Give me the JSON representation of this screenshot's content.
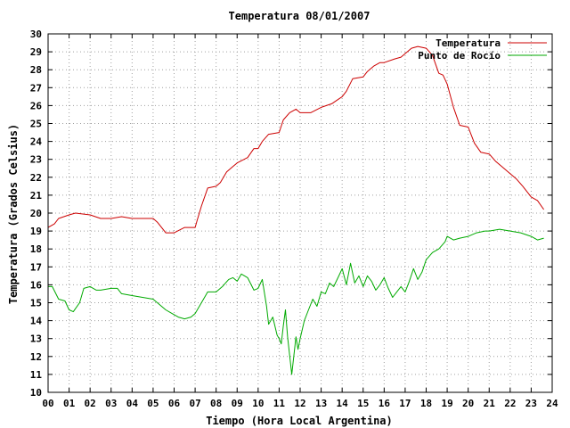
{
  "chart_data": {
    "type": "line",
    "title": "Temperatura 08/01/2007",
    "xlabel": "Tiempo (Hora Local Argentina)",
    "ylabel": "Temperatura (Grados Celsius)",
    "xlim": [
      0,
      24
    ],
    "ylim": [
      10,
      30
    ],
    "grid": true,
    "legend_position": "top-right",
    "x_tick_labels": [
      "00",
      "01",
      "02",
      "03",
      "04",
      "05",
      "06",
      "07",
      "08",
      "09",
      "10",
      "11",
      "12",
      "13",
      "14",
      "15",
      "16",
      "17",
      "18",
      "19",
      "20",
      "21",
      "22",
      "23",
      "24"
    ],
    "y_tick_labels": [
      "10",
      "11",
      "12",
      "13",
      "14",
      "15",
      "16",
      "17",
      "18",
      "19",
      "20",
      "21",
      "22",
      "23",
      "24",
      "25",
      "26",
      "27",
      "28",
      "29",
      "30"
    ],
    "series": [
      {
        "name": "Temperatura",
        "color": "#cc0000",
        "x": [
          0.0,
          0.3,
          0.5,
          1.0,
          1.3,
          2.0,
          2.5,
          3.0,
          3.5,
          4.0,
          4.5,
          5.0,
          5.2,
          5.4,
          5.6,
          6.0,
          6.5,
          7.0,
          7.1,
          7.3,
          7.6,
          8.0,
          8.2,
          8.5,
          8.8,
          9.0,
          9.5,
          9.8,
          10.0,
          10.2,
          10.5,
          11.0,
          11.2,
          11.5,
          11.8,
          12.0,
          12.5,
          13.0,
          13.5,
          14.0,
          14.2,
          14.5,
          15.0,
          15.2,
          15.5,
          15.8,
          16.0,
          16.5,
          16.8,
          17.0,
          17.3,
          17.6,
          18.0,
          18.3,
          18.6,
          18.8,
          19.0,
          19.3,
          19.6,
          20.0,
          20.3,
          20.6,
          21.0,
          21.3,
          21.6,
          22.0,
          22.3,
          22.6,
          23.0,
          23.3,
          23.6
        ],
        "y": [
          19.2,
          19.4,
          19.7,
          19.9,
          20.0,
          19.9,
          19.7,
          19.7,
          19.8,
          19.7,
          19.7,
          19.7,
          19.5,
          19.2,
          18.9,
          18.9,
          19.2,
          19.2,
          19.6,
          20.4,
          21.4,
          21.5,
          21.7,
          22.3,
          22.6,
          22.8,
          23.1,
          23.6,
          23.6,
          24.0,
          24.4,
          24.5,
          25.2,
          25.6,
          25.8,
          25.6,
          25.6,
          25.9,
          26.1,
          26.5,
          26.8,
          27.5,
          27.6,
          27.9,
          28.2,
          28.4,
          28.4,
          28.6,
          28.7,
          28.9,
          29.2,
          29.3,
          29.2,
          28.8,
          27.8,
          27.7,
          27.2,
          25.9,
          24.9,
          24.8,
          23.9,
          23.4,
          23.3,
          22.9,
          22.6,
          22.2,
          21.9,
          21.5,
          20.9,
          20.7,
          20.2
        ]
      },
      {
        "name": "Punto de Rocío",
        "color": "#00aa00",
        "x": [
          0.0,
          0.2,
          0.5,
          0.8,
          1.0,
          1.2,
          1.5,
          1.7,
          2.0,
          2.3,
          2.5,
          3.0,
          3.3,
          3.5,
          4.0,
          4.5,
          5.0,
          5.3,
          5.6,
          5.9,
          6.2,
          6.5,
          6.8,
          7.0,
          7.3,
          7.6,
          8.0,
          8.3,
          8.6,
          8.8,
          9.0,
          9.2,
          9.5,
          9.8,
          10.0,
          10.2,
          10.4,
          10.5,
          10.7,
          10.9,
          11.0,
          11.1,
          11.2,
          11.3,
          11.4,
          11.6,
          11.8,
          11.9,
          12.0,
          12.2,
          12.4,
          12.6,
          12.8,
          13.0,
          13.2,
          13.4,
          13.6,
          13.8,
          14.0,
          14.2,
          14.4,
          14.6,
          14.8,
          15.0,
          15.2,
          15.4,
          15.6,
          15.8,
          16.0,
          16.2,
          16.4,
          16.6,
          16.8,
          17.0,
          17.2,
          17.4,
          17.6,
          17.8,
          18.0,
          18.3,
          18.6,
          18.9,
          19.0,
          19.3,
          19.6,
          20.0,
          20.4,
          20.8,
          21.0,
          21.5,
          22.0,
          22.5,
          23.0,
          23.3,
          23.6
        ],
        "y": [
          15.9,
          15.9,
          15.2,
          15.1,
          14.6,
          14.5,
          15.0,
          15.8,
          15.9,
          15.7,
          15.7,
          15.8,
          15.8,
          15.5,
          15.4,
          15.3,
          15.2,
          14.9,
          14.6,
          14.4,
          14.2,
          14.1,
          14.2,
          14.4,
          15.0,
          15.6,
          15.6,
          15.9,
          16.3,
          16.4,
          16.2,
          16.6,
          16.4,
          15.7,
          15.8,
          16.3,
          14.8,
          13.8,
          14.2,
          13.2,
          13.0,
          12.7,
          13.7,
          14.6,
          13.1,
          11.0,
          13.1,
          12.4,
          13.0,
          14.0,
          14.6,
          15.2,
          14.8,
          15.6,
          15.5,
          16.1,
          15.9,
          16.4,
          16.9,
          16.0,
          17.2,
          16.1,
          16.5,
          15.9,
          16.5,
          16.2,
          15.7,
          16.0,
          16.4,
          15.8,
          15.3,
          15.6,
          15.9,
          15.6,
          16.2,
          16.9,
          16.3,
          16.7,
          17.4,
          17.8,
          18.0,
          18.4,
          18.7,
          18.5,
          18.6,
          18.7,
          18.9,
          19.0,
          19.0,
          19.1,
          19.0,
          18.9,
          18.7,
          18.5,
          18.6
        ]
      }
    ]
  }
}
